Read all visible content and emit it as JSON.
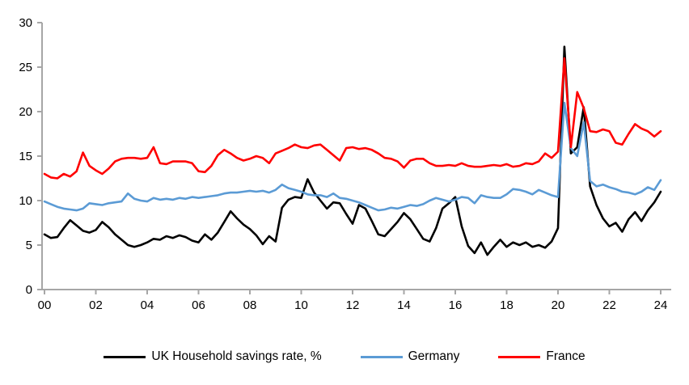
{
  "chart_data": {
    "type": "line",
    "title": "",
    "xlabel": "",
    "ylabel": "",
    "frequency": "quarterly",
    "x_start": "2000Q1",
    "x_end": "2024Q1",
    "x_tick_labels": [
      "00",
      "02",
      "04",
      "06",
      "08",
      "10",
      "12",
      "14",
      "16",
      "18",
      "20",
      "22",
      "24"
    ],
    "y_ticks": [
      0,
      5,
      10,
      15,
      20,
      25,
      30
    ],
    "ylim": [
      0,
      30
    ],
    "grid": false,
    "legend_position": "bottom-center",
    "axis_color": "#A6A6A6",
    "tick_label_color": "#000000",
    "series": [
      {
        "name": "UK Household savings rate, %",
        "color": "#000000",
        "values": [
          6.2,
          5.8,
          5.9,
          6.9,
          7.8,
          7.2,
          6.6,
          6.4,
          6.7,
          7.6,
          7.0,
          6.2,
          5.6,
          5.0,
          4.8,
          5.0,
          5.3,
          5.7,
          5.6,
          6.0,
          5.8,
          6.1,
          5.9,
          5.5,
          5.3,
          6.2,
          5.6,
          6.4,
          7.6,
          8.8,
          8.0,
          7.3,
          6.8,
          6.1,
          5.1,
          6.0,
          5.4,
          9.2,
          10.1,
          10.4,
          10.3,
          12.4,
          10.9,
          10.0,
          9.1,
          9.8,
          9.7,
          8.5,
          7.4,
          9.5,
          9.1,
          7.7,
          6.2,
          6.0,
          6.8,
          7.6,
          8.6,
          7.9,
          6.8,
          5.7,
          5.4,
          6.9,
          9.1,
          9.7,
          10.4,
          7.1,
          4.9,
          4.1,
          5.3,
          3.9,
          4.8,
          5.6,
          4.8,
          5.3,
          5.0,
          5.3,
          4.8,
          5.0,
          4.7,
          5.4,
          6.9,
          27.3,
          15.3,
          16.0,
          20.5,
          11.6,
          9.5,
          8.0,
          7.1,
          7.5,
          6.5,
          7.9,
          8.7,
          7.7,
          8.9,
          9.8,
          11.0
        ]
      },
      {
        "name": "Germany",
        "color": "#5B9BD5",
        "values": [
          9.9,
          9.6,
          9.3,
          9.1,
          9.0,
          8.9,
          9.1,
          9.7,
          9.6,
          9.5,
          9.7,
          9.8,
          9.9,
          10.8,
          10.2,
          10.0,
          9.9,
          10.3,
          10.1,
          10.2,
          10.1,
          10.3,
          10.2,
          10.4,
          10.3,
          10.4,
          10.5,
          10.6,
          10.8,
          10.9,
          10.9,
          11.0,
          11.1,
          11.0,
          11.1,
          10.9,
          11.2,
          11.8,
          11.4,
          11.2,
          11.0,
          10.7,
          10.6,
          10.6,
          10.4,
          10.8,
          10.3,
          10.2,
          10.0,
          9.8,
          9.5,
          9.2,
          8.9,
          9.0,
          9.2,
          9.1,
          9.3,
          9.5,
          9.4,
          9.6,
          10.0,
          10.3,
          10.1,
          9.9,
          10.1,
          10.4,
          10.3,
          9.7,
          10.6,
          10.4,
          10.3,
          10.3,
          10.7,
          11.3,
          11.2,
          11.0,
          10.7,
          11.2,
          10.9,
          10.6,
          10.4,
          21.0,
          15.9,
          15.0,
          18.8,
          12.2,
          11.6,
          11.8,
          11.5,
          11.3,
          11.0,
          10.9,
          10.7,
          11.0,
          11.5,
          11.2,
          12.3
        ]
      },
      {
        "name": "France",
        "color": "#FF0000",
        "values": [
          13.0,
          12.6,
          12.5,
          13.0,
          12.7,
          13.3,
          15.4,
          13.9,
          13.4,
          13.0,
          13.6,
          14.4,
          14.7,
          14.8,
          14.8,
          14.7,
          14.8,
          16.0,
          14.2,
          14.1,
          14.4,
          14.4,
          14.4,
          14.2,
          13.3,
          13.2,
          13.9,
          15.1,
          15.7,
          15.3,
          14.8,
          14.5,
          14.7,
          15.0,
          14.8,
          14.2,
          15.3,
          15.6,
          15.9,
          16.3,
          16.0,
          15.9,
          16.2,
          16.3,
          15.7,
          15.1,
          14.5,
          15.9,
          16.0,
          15.8,
          15.9,
          15.7,
          15.3,
          14.8,
          14.7,
          14.4,
          13.7,
          14.5,
          14.7,
          14.7,
          14.2,
          13.9,
          13.9,
          14.0,
          13.9,
          14.2,
          13.9,
          13.8,
          13.8,
          13.9,
          14.0,
          13.9,
          14.1,
          13.8,
          13.9,
          14.2,
          14.1,
          14.4,
          15.3,
          14.8,
          15.5,
          26.0,
          16.0,
          22.2,
          20.4,
          17.8,
          17.7,
          18.0,
          17.8,
          16.5,
          16.3,
          17.5,
          18.6,
          18.1,
          17.8,
          17.2,
          17.8
        ]
      }
    ]
  },
  "legend": {
    "items": [
      {
        "label": "UK Household savings rate, %",
        "color": "#000000"
      },
      {
        "label": "Germany",
        "color": "#5B9BD5"
      },
      {
        "label": "France",
        "color": "#FF0000"
      }
    ]
  }
}
